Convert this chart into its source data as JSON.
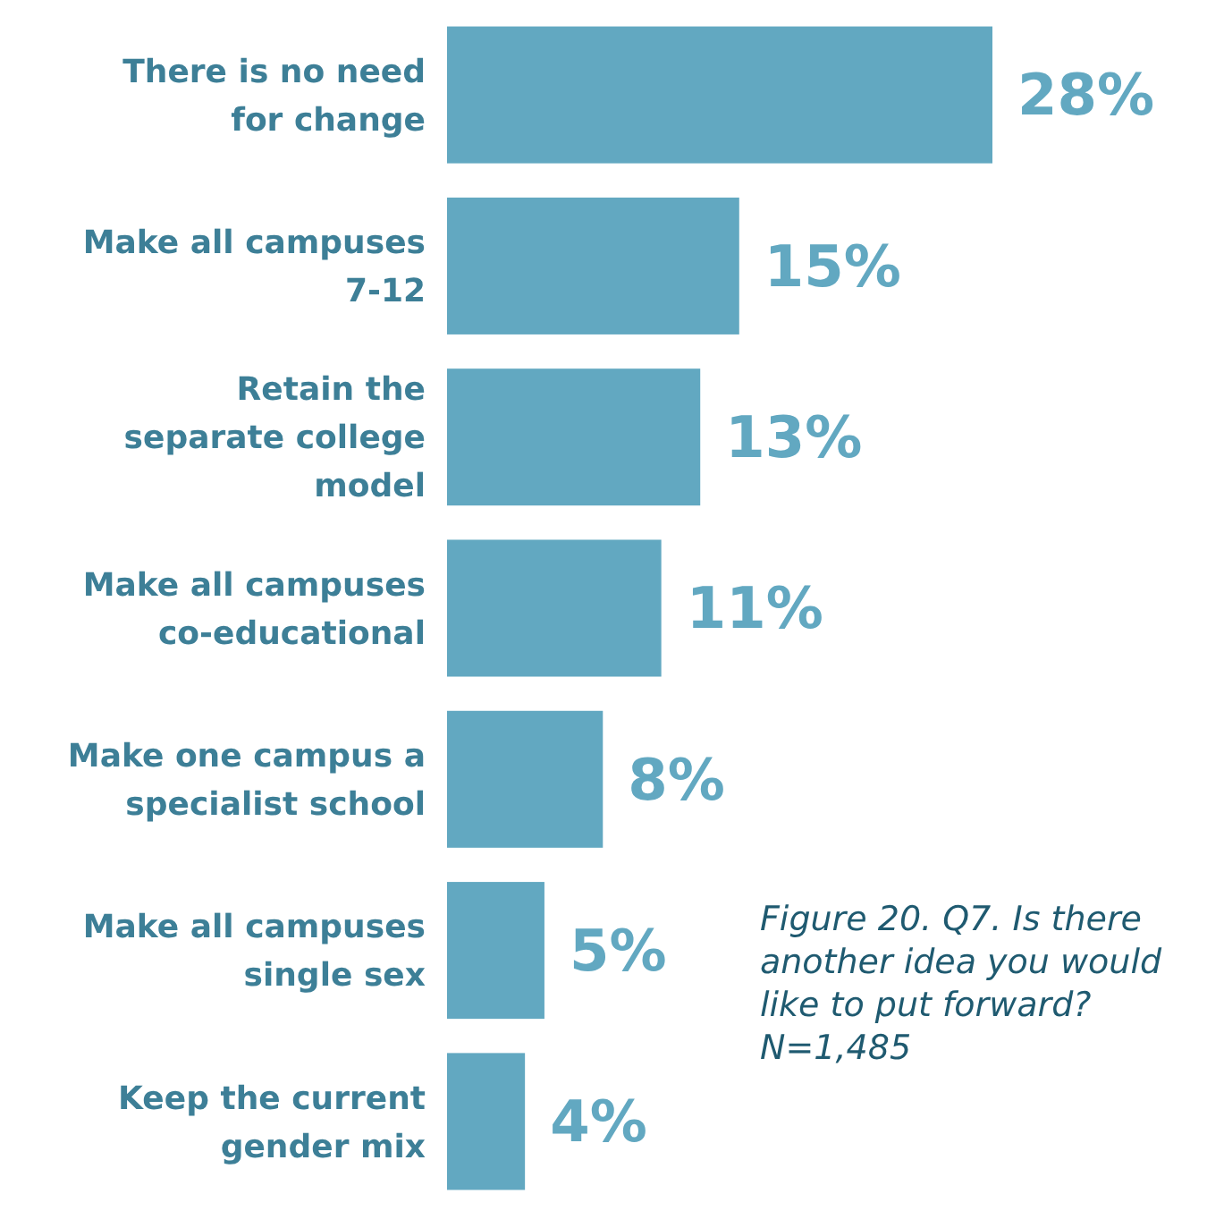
{
  "chart_data": {
    "type": "bar",
    "orientation": "horizontal",
    "categories": [
      "There is no need for change",
      "Make all campuses 7-12",
      "Retain the separate college model",
      "Make all campuses co-educational",
      "Make one campus a specialist school",
      "Make all campuses single sex",
      "Keep the current gender mix"
    ],
    "values": [
      28,
      15,
      13,
      11,
      8,
      5,
      4
    ],
    "value_labels": [
      "28%",
      "15%",
      "13%",
      "11%",
      "8%",
      "5%",
      "4%"
    ],
    "color": "#62a8c1",
    "annotations": [
      "Figure 20. Q7. Is there another idea you would like to put forward? N=1,485"
    ]
  }
}
